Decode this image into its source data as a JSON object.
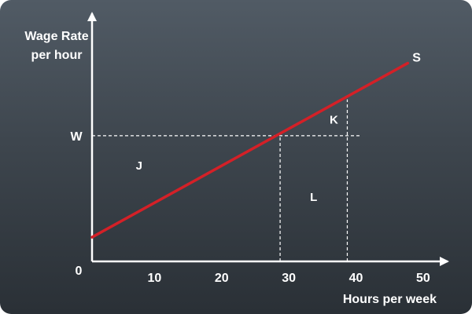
{
  "chart_data": {
    "type": "line",
    "ylabel_line1": "Wage Rate",
    "ylabel_line2": "per hour",
    "xlabel": "Hours per week",
    "origin_label": "0",
    "xlim": [
      0,
      52
    ],
    "ylim": [
      0,
      100
    ],
    "x_ticks": [
      {
        "value": 10,
        "label": "10"
      },
      {
        "value": 20,
        "label": "20"
      },
      {
        "value": 30,
        "label": "30"
      },
      {
        "value": 40,
        "label": "40"
      },
      {
        "value": 50,
        "label": "50"
      }
    ],
    "y_ticks": [
      {
        "value": 52,
        "label": "W"
      }
    ],
    "series": [
      {
        "name": "S",
        "color": "#d42027",
        "x": [
          0,
          47
        ],
        "y": [
          10,
          82
        ]
      }
    ],
    "guides": [
      {
        "type": "horizontal",
        "y": 52,
        "x_from": 0,
        "x_to": 40
      },
      {
        "type": "vertical",
        "x": 28,
        "y_from": 0,
        "y_to": 52
      },
      {
        "type": "vertical",
        "x": 38,
        "y_from": 0,
        "y_to": 67
      }
    ],
    "annotations": [
      {
        "text": "J",
        "x": 7,
        "y": 38
      },
      {
        "text": "K",
        "x": 36,
        "y": 57
      },
      {
        "text": "L",
        "x": 33,
        "y": 25
      }
    ],
    "colors": {
      "axes": "#ffffff",
      "guides": "#ffffff",
      "background": "#3e464e"
    }
  }
}
